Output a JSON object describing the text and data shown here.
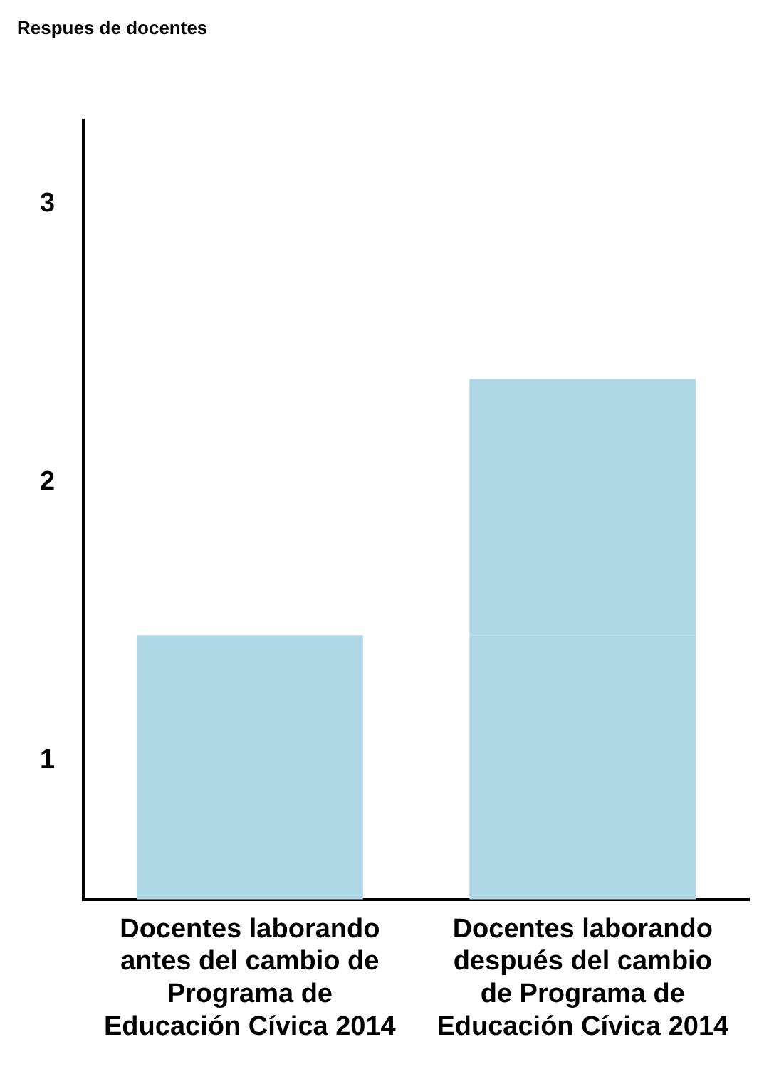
{
  "chart_data": {
    "type": "bar",
    "ylabel": "Respues de docentes",
    "categories": [
      "Docentes laborando antes del cambio de Programa de Educación Cívica 2014",
      "Docentes laborando después del cambio de Programa de Educación Cívica 2014"
    ],
    "series": [
      {
        "color": "#aed8e6",
        "values": [
          1.45,
          1.45
        ]
      },
      {
        "color": "#aed8e6",
        "values": [
          null,
          0.92
        ]
      }
    ],
    "stacked": true,
    "ylim": [
      0.5,
      3.3
    ],
    "yticks": [
      1,
      2,
      3
    ],
    "grid": false,
    "legend": false
  }
}
